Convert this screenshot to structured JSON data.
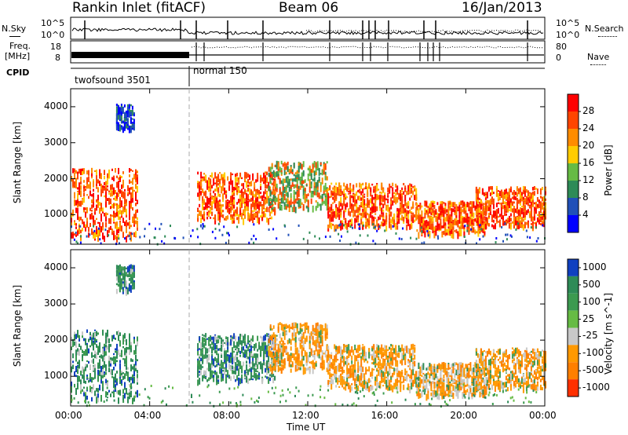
{
  "header": {
    "station": "Rankin Inlet (fitACF)",
    "beam": "Beam 06",
    "date": "16/Jan/2013"
  },
  "summary_panels": {
    "nsky_label": "N.Sky",
    "nsearch_label": "N.Search",
    "freq_label_line1": "Freq.",
    "freq_label_line2": "[MHz]",
    "nave_label": "Nave",
    "cpid_label": "CPID",
    "noise_tick_top": "10^5",
    "noise_tick_bottom": "10^0",
    "freq_tick_top": "18",
    "freq_tick_bottom": "8",
    "nave_tick_top": "80",
    "nave_tick_bottom": "0",
    "cpid_segments": [
      {
        "name": "twofsound 3501",
        "start_hour": 0,
        "end_hour": 6.0
      },
      {
        "name": "normal 150",
        "start_hour": 6.0,
        "end_hour": 24
      }
    ]
  },
  "chart_data": [
    {
      "type": "heatmap",
      "title": "",
      "xlabel": "Time UT",
      "ylabel": "Slant Range [km]",
      "x_ticks": [
        "00:00",
        "04:00",
        "08:00",
        "12:00",
        "16:00",
        "20:00",
        "00:00"
      ],
      "xlim_hours": [
        0,
        24
      ],
      "ylim": [
        180,
        4500
      ],
      "y_ticks": [
        1000,
        2000,
        3000,
        4000
      ],
      "colorbar": {
        "label": "Power [dB]",
        "ticks": [
          "4",
          "8",
          "12",
          "16",
          "20",
          "24",
          "28"
        ],
        "range": [
          0,
          30
        ],
        "colors": [
          "#0000ff",
          "#2050b8",
          "#2e8b57",
          "#66bb44",
          "#ffcc00",
          "#ff8c00",
          "#ff4500",
          "#ff0000"
        ]
      },
      "echo_regions": [
        {
          "t0": 0.0,
          "t1": 3.4,
          "r0": 400,
          "r1": 2300,
          "level": "high"
        },
        {
          "t0": 2.3,
          "t1": 3.2,
          "r0": 3400,
          "r1": 4100,
          "level": "low"
        },
        {
          "t0": 6.4,
          "t1": 10.3,
          "r0": 900,
          "r1": 2200,
          "level": "high"
        },
        {
          "t0": 10.0,
          "t1": 13.0,
          "r0": 1200,
          "r1": 2500,
          "level": "medium"
        },
        {
          "t0": 13.0,
          "t1": 17.5,
          "r0": 700,
          "r1": 1900,
          "level": "high"
        },
        {
          "t0": 17.5,
          "t1": 21.0,
          "r0": 500,
          "r1": 1400,
          "level": "high"
        },
        {
          "t0": 20.5,
          "t1": 24.0,
          "r0": 700,
          "r1": 1800,
          "level": "high"
        }
      ]
    },
    {
      "type": "heatmap",
      "title": "",
      "xlabel": "Time UT",
      "ylabel": "Slant Range [km]",
      "x_ticks": [
        "00:00",
        "04:00",
        "08:00",
        "12:00",
        "16:00",
        "20:00",
        "00:00"
      ],
      "xlim_hours": [
        0,
        24
      ],
      "ylim": [
        180,
        4500
      ],
      "y_ticks": [
        1000,
        2000,
        3000,
        4000
      ],
      "colorbar": {
        "label": "Velocity [m s^-1]",
        "ticks": [
          "1000",
          "500",
          "100",
          "25",
          "-25",
          "-100",
          "-500",
          "-1000"
        ],
        "range": [
          -1000,
          1000
        ],
        "colors": [
          "#1040c0",
          "#2e8b57",
          "#3c9a50",
          "#66bb44",
          "#c8c8c8",
          "#ff9900",
          "#ff7f00",
          "#ff3000"
        ]
      },
      "echo_regions": [
        {
          "t0": 0.0,
          "t1": 3.4,
          "r0": 400,
          "r1": 2300,
          "level": "positive"
        },
        {
          "t0": 2.3,
          "t1": 3.2,
          "r0": 3400,
          "r1": 4100,
          "level": "positive"
        },
        {
          "t0": 6.4,
          "t1": 10.3,
          "r0": 900,
          "r1": 2200,
          "level": "positive"
        },
        {
          "t0": 10.0,
          "t1": 13.0,
          "r0": 1200,
          "r1": 2500,
          "level": "negative"
        },
        {
          "t0": 13.0,
          "t1": 17.5,
          "r0": 700,
          "r1": 1900,
          "level": "negative"
        },
        {
          "t0": 17.5,
          "t1": 21.0,
          "r0": 500,
          "r1": 1400,
          "level": "mixed"
        },
        {
          "t0": 20.5,
          "t1": 24.0,
          "r0": 700,
          "r1": 1800,
          "level": "negative"
        }
      ]
    }
  ]
}
